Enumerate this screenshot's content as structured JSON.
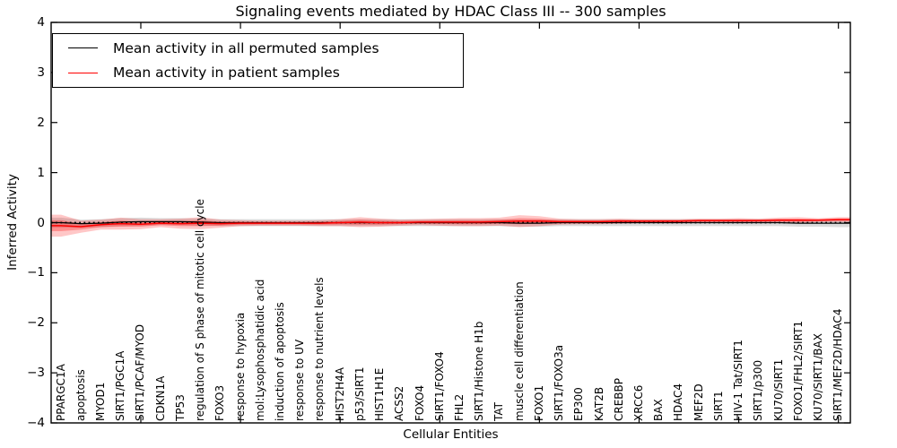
{
  "chart_data": {
    "type": "line",
    "title": "Signaling events mediated by HDAC Class III -- 300 samples",
    "xlabel": "Cellular Entities",
    "ylabel": "Inferred Activity",
    "ylim": [
      -4,
      4
    ],
    "yticks": [
      4,
      3,
      2,
      1,
      0,
      -1,
      -2,
      -3,
      -4
    ],
    "xtick_mark_positions": [
      5,
      10,
      15,
      20,
      25,
      30,
      35,
      40
    ],
    "grid": false,
    "legend_position": "upper left",
    "zero_line": {
      "y": 0,
      "style": "dotted",
      "color": "#000000"
    },
    "categories": [
      "PPARGC1A",
      "apoptosis",
      "MYOD1",
      "SIRT1/PGC1A",
      "SIRT1/PCAF/MYOD",
      "CDKN1A",
      "TP53",
      "regulation of S phase of mitotic cell cycle",
      "FOXO3",
      "response to hypoxia",
      "mol:Lysophosphatidic acid",
      "induction of apoptosis",
      "response to UV",
      "response to nutrient levels",
      "HIST2H4A",
      "p53/SIRT1",
      "HIST1H1E",
      "ACSS2",
      "FOXO4",
      "SIRT1/FOXO4",
      "FHL2",
      "SIRT1/Histone H1b",
      "TAT",
      "muscle cell differentiation",
      "FOXO1",
      "SIRT1/FOXO3a",
      "EP300",
      "KAT2B",
      "CREBBP",
      "XRCC6",
      "BAX",
      "HDAC4",
      "MEF2D",
      "SIRT1",
      "HIV-1 Tat/SIRT1",
      "SIRT1/p300",
      "KU70/SIRT1",
      "FOXO1/FHL2/SIRT1",
      "KU70/SIRT1/BAX",
      "SIRT1/MEF2D/HDAC4"
    ],
    "series": [
      {
        "name": "Mean activity in all permuted samples",
        "color": "#000000",
        "style": "solid",
        "values": [
          0,
          -0.02,
          -0.01,
          0.01,
          0.02,
          0.02,
          0.02,
          0.01,
          0,
          0,
          0,
          0,
          0,
          0,
          0,
          0,
          0,
          0,
          0,
          0,
          0,
          0,
          0,
          -0.01,
          -0.01,
          0,
          0,
          0,
          0,
          0,
          0,
          0,
          0,
          0,
          0,
          0,
          0,
          -0.01,
          -0.01,
          -0.01
        ],
        "band_std": [
          0.1,
          0.08,
          0.08,
          0.08,
          0.08,
          0.07,
          0.07,
          0.07,
          0.07,
          0.07,
          0.07,
          0.07,
          0.07,
          0.07,
          0.07,
          0.07,
          0.07,
          0.07,
          0.07,
          0.07,
          0.07,
          0.07,
          0.07,
          0.07,
          0.07,
          0.07,
          0.07,
          0.07,
          0.07,
          0.07,
          0.07,
          0.07,
          0.07,
          0.07,
          0.07,
          0.07,
          0.07,
          0.07,
          0.07,
          0.08
        ],
        "band_color": "#bbbbbb"
      },
      {
        "name": "Mean activity in patient samples",
        "color": "#ff0000",
        "style": "solid",
        "values": [
          -0.06,
          -0.08,
          -0.04,
          -0.02,
          -0.03,
          -0.01,
          -0.02,
          -0.01,
          -0.02,
          -0.01,
          -0.01,
          -0.01,
          -0.01,
          -0.01,
          0,
          0.01,
          0,
          0,
          0.01,
          0.01,
          0.01,
          0.01,
          0.02,
          0.03,
          0.03,
          0.02,
          0.02,
          0.02,
          0.03,
          0.03,
          0.03,
          0.03,
          0.04,
          0.04,
          0.04,
          0.04,
          0.05,
          0.05,
          0.05,
          0.06
        ],
        "band_std": [
          0.22,
          0.12,
          0.1,
          0.12,
          0.1,
          0.08,
          0.1,
          0.12,
          0.08,
          0.06,
          0.05,
          0.05,
          0.05,
          0.06,
          0.07,
          0.1,
          0.08,
          0.06,
          0.06,
          0.07,
          0.08,
          0.08,
          0.08,
          0.12,
          0.1,
          0.06,
          0.05,
          0.05,
          0.05,
          0.04,
          0.04,
          0.04,
          0.04,
          0.04,
          0.05,
          0.04,
          0.05,
          0.06,
          0.04,
          0.05
        ],
        "band_color": "#ff0000"
      }
    ]
  }
}
